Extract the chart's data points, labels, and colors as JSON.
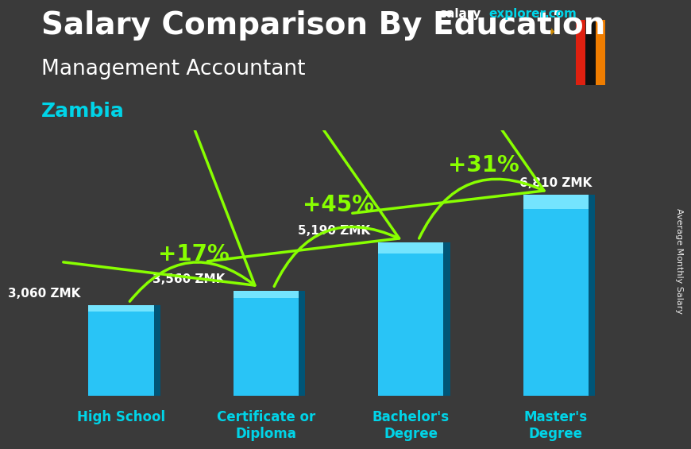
{
  "title_main": "Salary Comparison By Education",
  "title_sub": "Management Accountant",
  "title_country": "Zambia",
  "ylabel": "Average Monthly Salary",
  "categories": [
    "High School",
    "Certificate or\nDiploma",
    "Bachelor's\nDegree",
    "Master's\nDegree"
  ],
  "values": [
    3060,
    3560,
    5190,
    6810
  ],
  "value_labels": [
    "3,060 ZMK",
    "3,560 ZMK",
    "5,190 ZMK",
    "6,810 ZMK"
  ],
  "pct_labels": [
    "+17%",
    "+45%",
    "+31%"
  ],
  "bar_color_face": "#29c4f6",
  "bar_color_light": "#7de8ff",
  "bar_color_dark": "#0088bb",
  "bar_color_side": "#005577",
  "bg_color": "#3a3a3a",
  "text_color_white": "#ffffff",
  "text_color_cyan": "#00d4e8",
  "text_color_green": "#88ff00",
  "arrow_color": "#88ff00",
  "site_salary_color": "#ffffff",
  "site_explorer_color": "#00d4e8",
  "site_com_color": "#00d4e8",
  "value_fontsize": 11,
  "pct_fontsize": 20,
  "title_fontsize": 28,
  "sub_fontsize": 19,
  "country_fontsize": 18,
  "cat_fontsize": 12,
  "ylim": [
    0,
    9000
  ],
  "flag_colors": {
    "green": "#198a00",
    "red": "#de2010",
    "black": "#111111",
    "orange": "#ef7d00"
  }
}
